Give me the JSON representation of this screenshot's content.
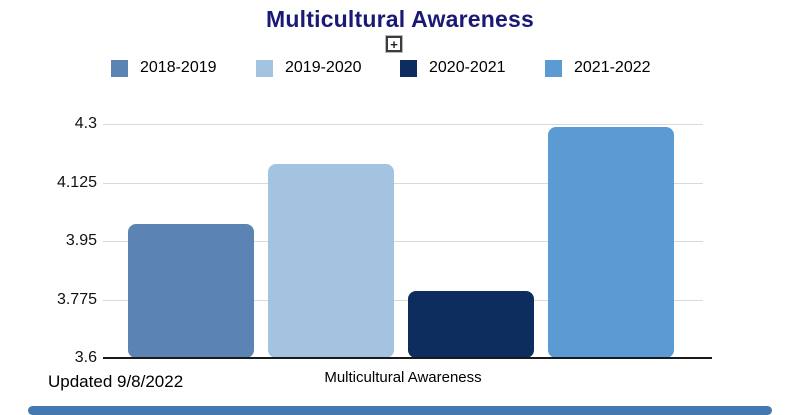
{
  "header": {
    "expand_glyph": "+"
  },
  "footer": {
    "updated": "Updated 9/8/2022"
  },
  "chart_data": {
    "type": "bar",
    "title": "Multicultural Awareness",
    "categories": [
      "Multicultural Awareness"
    ],
    "series": [
      {
        "name": "2018-2019",
        "color": "#5b84b5",
        "values": [
          4.0
        ]
      },
      {
        "name": "2019-2020",
        "color": "#a3c3e1",
        "values": [
          4.18
        ]
      },
      {
        "name": "2020-2021",
        "color": "#0d2d5e",
        "values": [
          3.8
        ]
      },
      {
        "name": "2021-2022",
        "color": "#5b9ad2",
        "values": [
          4.29
        ]
      }
    ],
    "xlabel": "Multicultural Awareness",
    "ylabel": "",
    "yticks": [
      "3.6",
      "3.775",
      "3.95",
      "4.125",
      "4.3"
    ],
    "ylim": [
      3.6,
      4.3
    ],
    "grid": true,
    "legend_position": "top"
  }
}
